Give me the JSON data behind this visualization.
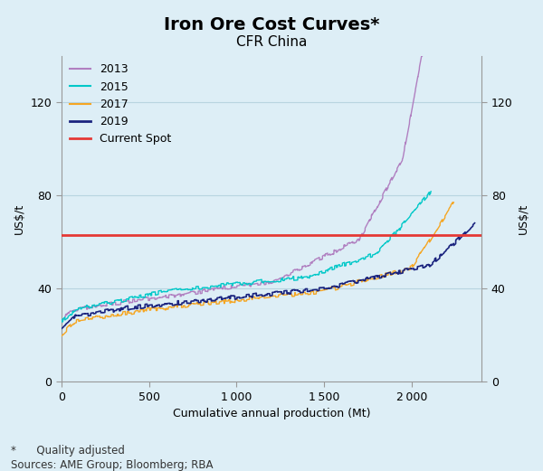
{
  "title": "Iron Ore Cost Curves*",
  "subtitle": "CFR China",
  "xlabel": "Cumulative annual production (Mt)",
  "ylabel_left": "US$/t",
  "ylabel_right": "US$/t",
  "footnote1": "*      Quality adjusted",
  "footnote2": "Sources: AME Group; Bloomberg; RBA",
  "background_color": "#ddeef6",
  "plot_bg_color": "#ddeef6",
  "xlim": [
    0,
    2400
  ],
  "ylim": [
    0,
    140
  ],
  "yticks": [
    0,
    40,
    80,
    120
  ],
  "xticks": [
    0,
    500,
    1000,
    1500,
    2000
  ],
  "xtick_labels": [
    "0",
    "500",
    "1 000",
    "1 500",
    "2 000"
  ],
  "current_spot": 63,
  "line_colors": {
    "2013": "#b07fc0",
    "2015": "#00c8c8",
    "2017": "#f5a623",
    "2019": "#1a237e"
  },
  "spot_color": "#e53935",
  "grid_color": "#b8d4e0",
  "title_fontsize": 14,
  "subtitle_fontsize": 11,
  "axis_label_fontsize": 9,
  "tick_fontsize": 9,
  "legend_fontsize": 9,
  "footnote_fontsize": 8.5
}
